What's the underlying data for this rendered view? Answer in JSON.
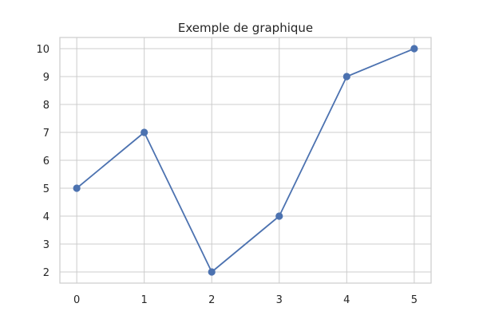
{
  "chart_data": {
    "type": "line",
    "title": "Exemple de graphique",
    "xlabel": "",
    "ylabel": "",
    "x": [
      0,
      1,
      2,
      3,
      4,
      5
    ],
    "series": [
      {
        "values": [
          5,
          7,
          2,
          4,
          9,
          10
        ],
        "color": "#4c72b0",
        "marker": "circle"
      }
    ],
    "xticks": [
      "0",
      "1",
      "2",
      "3",
      "4",
      "5"
    ],
    "yticks": [
      "2",
      "3",
      "4",
      "5",
      "6",
      "7",
      "8",
      "9",
      "10"
    ],
    "xlim": [
      -0.25,
      5.25
    ],
    "ylim": [
      1.6,
      10.4
    ],
    "grid": true,
    "legend": "none"
  }
}
